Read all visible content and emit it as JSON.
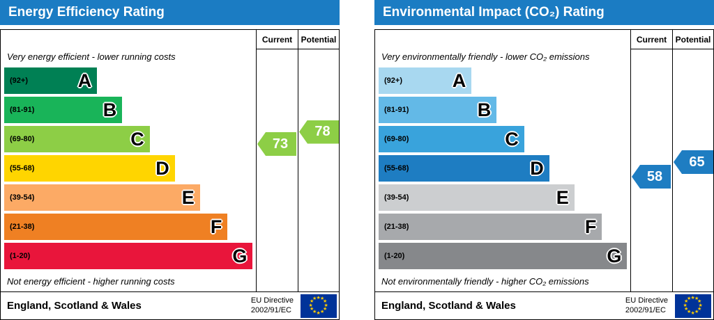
{
  "chart_data": [
    {
      "type": "bar",
      "id": "energy-efficiency",
      "title": "Energy Efficiency Rating",
      "header_color": "#1b7cc3",
      "columns": {
        "current": "Current",
        "potential": "Potential"
      },
      "top_label": "Very energy efficient - lower running costs",
      "bottom_label": "Not energy efficient - higher running costs",
      "footer_region": "England, Scotland & Wales",
      "footer_directive_line1": "EU Directive",
      "footer_directive_line2": "2002/91/EC",
      "bands": [
        {
          "range": "(92+)",
          "letter": "A",
          "low": 92,
          "high": 100,
          "color": "#008054",
          "width_pct": 37
        },
        {
          "range": "(81-91)",
          "letter": "B",
          "low": 81,
          "high": 91,
          "color": "#19b459",
          "width_pct": 47
        },
        {
          "range": "(69-80)",
          "letter": "C",
          "low": 69,
          "high": 80,
          "color": "#8dce46",
          "width_pct": 58
        },
        {
          "range": "(55-68)",
          "letter": "D",
          "low": 55,
          "high": 68,
          "color": "#ffd500",
          "width_pct": 68
        },
        {
          "range": "(39-54)",
          "letter": "E",
          "low": 39,
          "high": 54,
          "color": "#fcaa65",
          "width_pct": 78
        },
        {
          "range": "(21-38)",
          "letter": "F",
          "low": 21,
          "high": 38,
          "color": "#ef8023",
          "width_pct": 89
        },
        {
          "range": "(1-20)",
          "letter": "G",
          "low": 1,
          "high": 20,
          "color": "#e9153b",
          "width_pct": 99
        }
      ],
      "ratings": {
        "current": {
          "value": 73,
          "band": "C",
          "color": "#8dce46"
        },
        "potential": {
          "value": 78,
          "band": "C",
          "color": "#8dce46"
        }
      }
    },
    {
      "type": "bar",
      "id": "environmental-impact",
      "title": "Environmental Impact (CO₂) Rating",
      "header_color": "#1b7cc3",
      "columns": {
        "current": "Current",
        "potential": "Potential"
      },
      "top_label": "Very environmentally friendly - lower CO₂ emissions",
      "bottom_label": "Not environmentally friendly - higher CO₂ emissions",
      "footer_region": "England, Scotland & Wales",
      "footer_directive_line1": "EU Directive",
      "footer_directive_line2": "2002/91/EC",
      "bands": [
        {
          "range": "(92+)",
          "letter": "A",
          "low": 92,
          "high": 100,
          "color": "#a8d8f0",
          "width_pct": 37
        },
        {
          "range": "(81-91)",
          "letter": "B",
          "low": 81,
          "high": 91,
          "color": "#63b9e7",
          "width_pct": 47
        },
        {
          "range": "(69-80)",
          "letter": "C",
          "low": 69,
          "high": 80,
          "color": "#39a3dc",
          "width_pct": 58
        },
        {
          "range": "(55-68)",
          "letter": "D",
          "low": 55,
          "high": 68,
          "color": "#1e7dc2",
          "width_pct": 68
        },
        {
          "range": "(39-54)",
          "letter": "E",
          "low": 39,
          "high": 54,
          "color": "#ccced0",
          "width_pct": 78
        },
        {
          "range": "(21-38)",
          "letter": "F",
          "low": 21,
          "high": 38,
          "color": "#a7a9ac",
          "width_pct": 89
        },
        {
          "range": "(1-20)",
          "letter": "G",
          "low": 1,
          "high": 20,
          "color": "#86888b",
          "width_pct": 99
        }
      ],
      "ratings": {
        "current": {
          "value": 58,
          "band": "D",
          "color": "#1e7dc2"
        },
        "potential": {
          "value": 65,
          "band": "D",
          "color": "#1e7dc2"
        }
      }
    }
  ]
}
